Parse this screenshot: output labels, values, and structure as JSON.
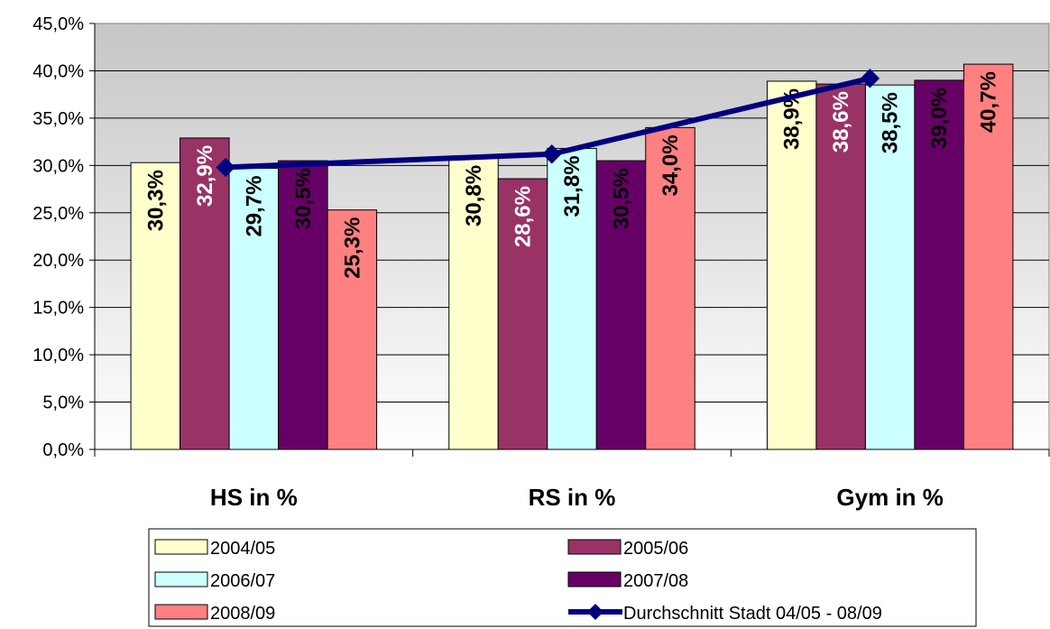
{
  "chart_data": {
    "type": "bar",
    "categories": [
      "HS in %",
      "RS in %",
      "Gym in %"
    ],
    "series": [
      {
        "name": "2004/05",
        "values": [
          30.3,
          30.8,
          38.9
        ],
        "labels": [
          "30,3%",
          "30,8%",
          "38,9%"
        ],
        "color": "#FFFFCC",
        "label_color": "#000000"
      },
      {
        "name": "2005/06",
        "values": [
          32.9,
          28.6,
          38.6
        ],
        "labels": [
          "32,9%",
          "28,6%",
          "38,6%"
        ],
        "color": "#993366",
        "label_color": "#FFFFFF"
      },
      {
        "name": "2006/07",
        "values": [
          29.7,
          31.8,
          38.5
        ],
        "labels": [
          "29,7%",
          "31,8%",
          "38,5%"
        ],
        "color": "#CCFFFF",
        "label_color": "#000000"
      },
      {
        "name": "2007/08",
        "values": [
          30.5,
          30.5,
          39.0
        ],
        "labels": [
          "30,5%",
          "30,5%",
          "39,0%"
        ],
        "color": "#660066",
        "label_color": "#000000"
      },
      {
        "name": "2008/09",
        "values": [
          25.3,
          34.0,
          40.7
        ],
        "labels": [
          "25,3%",
          "34,0%",
          "40,7%"
        ],
        "color": "#FF8080",
        "label_color": "#000000"
      }
    ],
    "line_series": {
      "name": "Durchschnitt Stadt 04/05 - 08/09",
      "values": [
        29.8,
        31.2,
        39.2
      ],
      "color": "#000080"
    },
    "ylim": [
      0,
      45
    ],
    "yticks": [
      "0,0%",
      "5,0%",
      "10,0%",
      "15,0%",
      "20,0%",
      "25,0%",
      "30,0%",
      "35,0%",
      "40,0%",
      "45,0%"
    ],
    "grid": true,
    "legend_position": "bottom"
  }
}
